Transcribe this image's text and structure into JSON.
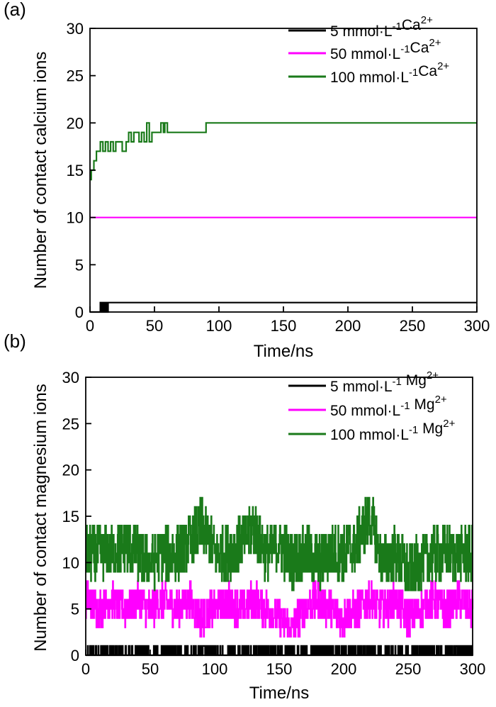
{
  "chart_data": [
    {
      "panel_label": "(a)",
      "type": "line",
      "xlabel": "Time/ns",
      "ylabel": "Number of contact calcium ions",
      "xlim": [
        0,
        300
      ],
      "ylim": [
        0,
        30
      ],
      "xticks": [
        0,
        50,
        100,
        150,
        200,
        250,
        300
      ],
      "yticks": [
        0,
        5,
        10,
        15,
        20,
        25,
        30
      ],
      "legend_position": "top-right",
      "series": [
        {
          "name": "5 mmol·L⁻¹Ca²⁺",
          "color": "#000000",
          "style": "step",
          "points": [
            [
              0,
              0
            ],
            [
              5,
              0
            ],
            [
              8,
              1
            ],
            [
              9,
              0
            ],
            [
              10,
              1
            ],
            [
              11,
              0
            ],
            [
              12,
              1
            ],
            [
              13,
              0
            ],
            [
              14,
              1
            ],
            [
              300,
              1
            ]
          ]
        },
        {
          "name": "50 mmol·L⁻¹Ca²⁺",
          "color": "#ff00ff",
          "style": "step",
          "points": [
            [
              0,
              10
            ],
            [
              300,
              10
            ]
          ]
        },
        {
          "name": "100 mmol·L⁻¹Ca²⁺",
          "color": "#1a7a1a",
          "style": "step",
          "points": [
            [
              0,
              14
            ],
            [
              1,
              15
            ],
            [
              3,
              16
            ],
            [
              5,
              17
            ],
            [
              8,
              18
            ],
            [
              10,
              17
            ],
            [
              12,
              18
            ],
            [
              14,
              17
            ],
            [
              16,
              18
            ],
            [
              18,
              17
            ],
            [
              20,
              18
            ],
            [
              25,
              17
            ],
            [
              28,
              18
            ],
            [
              30,
              19
            ],
            [
              32,
              18
            ],
            [
              34,
              19
            ],
            [
              38,
              18
            ],
            [
              40,
              19
            ],
            [
              42,
              18
            ],
            [
              44,
              20
            ],
            [
              46,
              18
            ],
            [
              48,
              19
            ],
            [
              50,
              19
            ],
            [
              55,
              20
            ],
            [
              57,
              19
            ],
            [
              58,
              20
            ],
            [
              60,
              19
            ],
            [
              90,
              20
            ],
            [
              300,
              20
            ]
          ]
        }
      ]
    },
    {
      "panel_label": "(b)",
      "type": "line",
      "xlabel": "Time/ns",
      "ylabel": "Number of contact magnesium ions",
      "xlim": [
        0,
        300
      ],
      "ylim": [
        0,
        30
      ],
      "xticks": [
        0,
        50,
        100,
        150,
        200,
        250,
        300
      ],
      "yticks": [
        0,
        5,
        10,
        15,
        20,
        25,
        30
      ],
      "legend_position": "top-right",
      "series": [
        {
          "name": "5 mmol·L⁻¹ Mg²⁺",
          "color": "#000000",
          "style": "noisy",
          "mean": 0.3,
          "min": 0,
          "max": 1,
          "spread": 1,
          "points": [
            [
              0,
              0
            ],
            [
              300,
              0
            ]
          ]
        },
        {
          "name": "50 mmol·L⁻¹ Mg²⁺",
          "color": "#ff00ff",
          "style": "noisy",
          "min": 2,
          "max": 9,
          "spread": 2,
          "points": [
            [
              0,
              6
            ],
            [
              10,
              5
            ],
            [
              20,
              6
            ],
            [
              30,
              5
            ],
            [
              40,
              6
            ],
            [
              50,
              5
            ],
            [
              60,
              6
            ],
            [
              70,
              5
            ],
            [
              80,
              6
            ],
            [
              90,
              4
            ],
            [
              100,
              5
            ],
            [
              110,
              6
            ],
            [
              120,
              5
            ],
            [
              130,
              6
            ],
            [
              140,
              5
            ],
            [
              150,
              4
            ],
            [
              160,
              3
            ],
            [
              170,
              5
            ],
            [
              180,
              6
            ],
            [
              190,
              5
            ],
            [
              200,
              4
            ],
            [
              210,
              5
            ],
            [
              220,
              6
            ],
            [
              230,
              5
            ],
            [
              240,
              6
            ],
            [
              250,
              4
            ],
            [
              260,
              5
            ],
            [
              270,
              6
            ],
            [
              280,
              5
            ],
            [
              290,
              6
            ],
            [
              300,
              5
            ]
          ]
        },
        {
          "name": "100 mmol·L⁻¹ Mg²⁺",
          "color": "#1a7a1a",
          "style": "noisy",
          "min": 6,
          "max": 18,
          "spread": 3,
          "points": [
            [
              0,
              11
            ],
            [
              10,
              11
            ],
            [
              20,
              11
            ],
            [
              30,
              12
            ],
            [
              40,
              11
            ],
            [
              50,
              10
            ],
            [
              60,
              11
            ],
            [
              70,
              11
            ],
            [
              80,
              12
            ],
            [
              90,
              14
            ],
            [
              100,
              11
            ],
            [
              110,
              11
            ],
            [
              120,
              12
            ],
            [
              130,
              14
            ],
            [
              140,
              11
            ],
            [
              150,
              12
            ],
            [
              160,
              10
            ],
            [
              170,
              11
            ],
            [
              180,
              10
            ],
            [
              190,
              11
            ],
            [
              200,
              11
            ],
            [
              210,
              12
            ],
            [
              220,
              15
            ],
            [
              230,
              10
            ],
            [
              240,
              11
            ],
            [
              250,
              9
            ],
            [
              260,
              10
            ],
            [
              270,
              11
            ],
            [
              280,
              11
            ],
            [
              290,
              11
            ],
            [
              300,
              11
            ]
          ]
        }
      ]
    }
  ]
}
